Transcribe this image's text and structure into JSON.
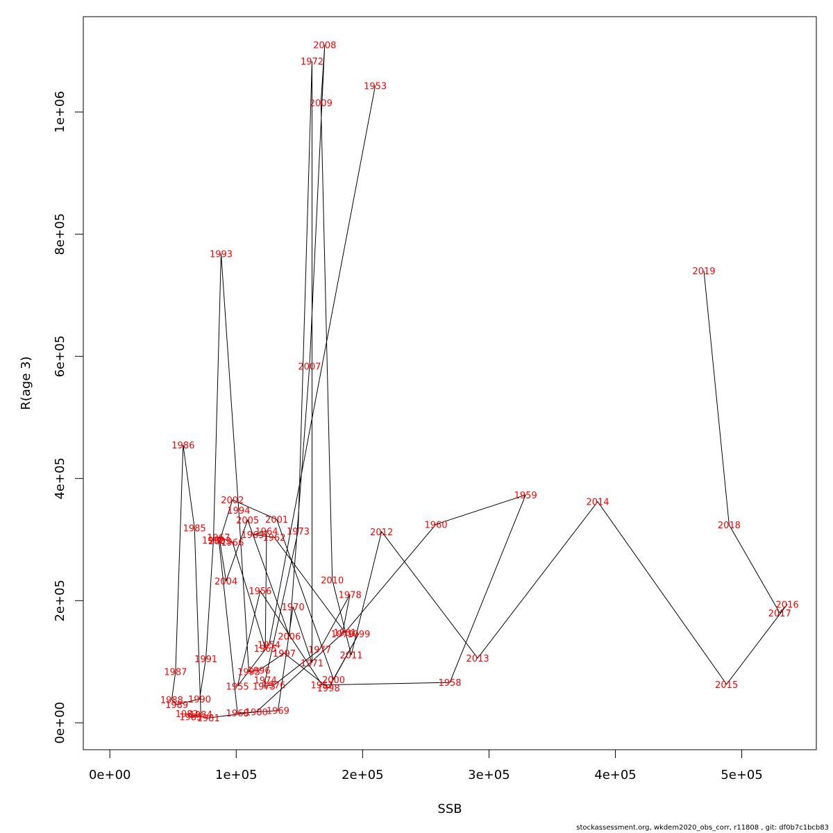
{
  "chart_data": {
    "type": "line",
    "xlabel": "SSB",
    "ylabel": "R(age 3)",
    "xlim": [
      -21000,
      559000
    ],
    "ylim": [
      -44000,
      1156000
    ],
    "x_ticks": [
      {
        "v": 0,
        "label": "0e+00"
      },
      {
        "v": 100000,
        "label": "1e+05"
      },
      {
        "v": 200000,
        "label": "2e+05"
      },
      {
        "v": 300000,
        "label": "3e+05"
      },
      {
        "v": 400000,
        "label": "4e+05"
      },
      {
        "v": 500000,
        "label": "5e+05"
      }
    ],
    "y_ticks": [
      {
        "v": 0,
        "label": "0e+00"
      },
      {
        "v": 200000,
        "label": "2e+05"
      },
      {
        "v": 400000,
        "label": "4e+05"
      },
      {
        "v": 600000,
        "label": "6e+05"
      },
      {
        "v": 800000,
        "label": "8e+05"
      },
      {
        "v": 1000000,
        "label": "1e+06"
      }
    ],
    "points": [
      {
        "year": "1953",
        "ssb": 210000,
        "r": 1043000
      },
      {
        "year": "1954",
        "ssb": 126000,
        "r": 128000
      },
      {
        "year": "1955",
        "ssb": 101000,
        "r": 60000
      },
      {
        "year": "1956",
        "ssb": 119000,
        "r": 216000
      },
      {
        "year": "1957",
        "ssb": 168000,
        "r": 62000
      },
      {
        "year": "1958",
        "ssb": 269000,
        "r": 66000
      },
      {
        "year": "1959",
        "ssb": 329000,
        "r": 373000
      },
      {
        "year": "1960",
        "ssb": 258000,
        "r": 325000
      },
      {
        "year": "1961",
        "ssb": 186000,
        "r": 148000
      },
      {
        "year": "1962",
        "ssb": 130000,
        "r": 304000
      },
      {
        "year": "1963",
        "ssb": 113000,
        "r": 308000
      },
      {
        "year": "1964",
        "ssb": 124000,
        "r": 314000
      },
      {
        "year": "1965",
        "ssb": 123000,
        "r": 122000
      },
      {
        "year": "1966",
        "ssb": 97000,
        "r": 296000
      },
      {
        "year": "1967",
        "ssb": 86000,
        "r": 304000
      },
      {
        "year": "1968",
        "ssb": 101000,
        "r": 16000
      },
      {
        "year": "1969",
        "ssb": 133000,
        "r": 20000
      },
      {
        "year": "1970",
        "ssb": 145000,
        "r": 190000
      },
      {
        "year": "1971",
        "ssb": 160000,
        "r": 98000
      },
      {
        "year": "1972",
        "ssb": 160000,
        "r": 1083000
      },
      {
        "year": "1973",
        "ssb": 149000,
        "r": 314000
      },
      {
        "year": "1974",
        "ssb": 123000,
        "r": 70000
      },
      {
        "year": "1975",
        "ssb": 122000,
        "r": 60000
      },
      {
        "year": "1976",
        "ssb": 130000,
        "r": 62000
      },
      {
        "year": "1977",
        "ssb": 166000,
        "r": 120000
      },
      {
        "year": "1978",
        "ssb": 190000,
        "r": 210000
      },
      {
        "year": "1979",
        "ssb": 184000,
        "r": 146000
      },
      {
        "year": "1980",
        "ssb": 116000,
        "r": 18000
      },
      {
        "year": "1981",
        "ssb": 78000,
        "r": 8000
      },
      {
        "year": "1982",
        "ssb": 61000,
        "r": 15000
      },
      {
        "year": "1983",
        "ssb": 64000,
        "r": 10000
      },
      {
        "year": "1984",
        "ssb": 72000,
        "r": 14000
      },
      {
        "year": "1985",
        "ssb": 67000,
        "r": 319000
      },
      {
        "year": "1986",
        "ssb": 58000,
        "r": 455000
      },
      {
        "year": "1987",
        "ssb": 52000,
        "r": 84000
      },
      {
        "year": "1988",
        "ssb": 49000,
        "r": 38000
      },
      {
        "year": "1989",
        "ssb": 53000,
        "r": 30000
      },
      {
        "year": "1990",
        "ssb": 71000,
        "r": 39000
      },
      {
        "year": "1991",
        "ssb": 76000,
        "r": 105000
      },
      {
        "year": "1992",
        "ssb": 82000,
        "r": 299000
      },
      {
        "year": "1993",
        "ssb": 88000,
        "r": 768000
      },
      {
        "year": "1994",
        "ssb": 102000,
        "r": 348000
      },
      {
        "year": "1995",
        "ssb": 110000,
        "r": 84000
      },
      {
        "year": "1996",
        "ssb": 118000,
        "r": 86000
      },
      {
        "year": "1997",
        "ssb": 138000,
        "r": 114000
      },
      {
        "year": "1998",
        "ssb": 173000,
        "r": 57000
      },
      {
        "year": "1999",
        "ssb": 197000,
        "r": 146000
      },
      {
        "year": "2000",
        "ssb": 177000,
        "r": 71000
      },
      {
        "year": "2001",
        "ssb": 132000,
        "r": 333000
      },
      {
        "year": "2002",
        "ssb": 97000,
        "r": 365000
      },
      {
        "year": "2003",
        "ssb": 87000,
        "r": 298000
      },
      {
        "year": "2004",
        "ssb": 92000,
        "r": 232000
      },
      {
        "year": "2005",
        "ssb": 109000,
        "r": 332000
      },
      {
        "year": "2006",
        "ssb": 142000,
        "r": 142000
      },
      {
        "year": "2007",
        "ssb": 158000,
        "r": 584000
      },
      {
        "year": "2008",
        "ssb": 170000,
        "r": 1110000
      },
      {
        "year": "2009",
        "ssb": 167000,
        "r": 1015000
      },
      {
        "year": "2010",
        "ssb": 176000,
        "r": 234000
      },
      {
        "year": "2011",
        "ssb": 191000,
        "r": 111000
      },
      {
        "year": "2012",
        "ssb": 215000,
        "r": 313000
      },
      {
        "year": "2013",
        "ssb": 291000,
        "r": 106000
      },
      {
        "year": "2014",
        "ssb": 386000,
        "r": 362000
      },
      {
        "year": "2015",
        "ssb": 488000,
        "r": 63000
      },
      {
        "year": "2016",
        "ssb": 536000,
        "r": 194000
      },
      {
        "year": "2017",
        "ssb": 530000,
        "r": 180000
      },
      {
        "year": "2018",
        "ssb": 490000,
        "r": 324000
      },
      {
        "year": "2019",
        "ssb": 470000,
        "r": 740000
      }
    ]
  },
  "footer": {
    "text": "stockassessment.org, wkdem2020_obs_corr, r11808 , git: df0b7c1bcb83"
  }
}
